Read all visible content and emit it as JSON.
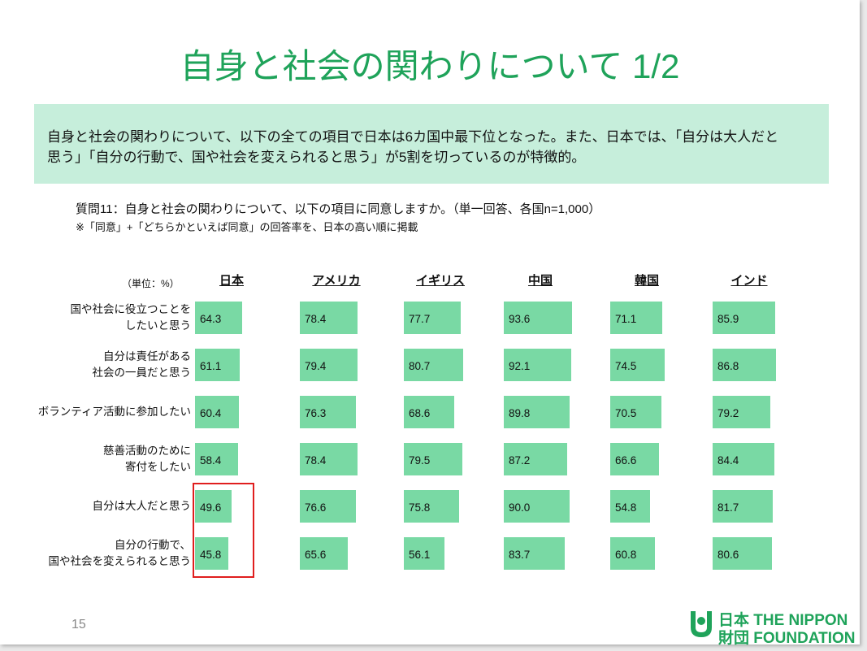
{
  "title": "自身と社会の関わりについて 1/2",
  "summary": [
    "自身と社会の関わりについて、以下の全ての項目で日本は6カ国中最下位となった。また、日本では、「自分は大人だと",
    "思う」「自分の行動で、国や社会を変えられると思う」が5割を切っているのが特徴的。"
  ],
  "question": "質問11：自身と社会の関わりについて、以下の項目に同意しますか。（単一回答、各国n=1,000）",
  "note": "※「同意」+「どちらかといえば同意」の回答率を、日本の高い順に掲載",
  "page_number": "15",
  "logo": [
    "日本 THE NIPPON",
    "財団 FOUNDATION"
  ],
  "chart_data": {
    "type": "bar",
    "unit": "（単位：%）",
    "categories": [
      "国や社会に役立つことを\nしたいと思う",
      "自分は責任がある\n社会の一員だと思う",
      "ボランティア活動に参加したい",
      "慈善活動のために\n寄付をしたい",
      "自分は大人だと思う",
      "自分の行動で、\n国や社会を変えられると思う"
    ],
    "xlim": [
      0,
      100
    ],
    "series": [
      {
        "name": "日本",
        "color": "#79d9a4",
        "values": [
          64.3,
          61.1,
          60.4,
          58.4,
          49.6,
          45.8
        ],
        "value_labels": [
          "64.3",
          "61.1",
          "60.4",
          "58.4",
          "49.6",
          "45.8"
        ]
      },
      {
        "name": "アメリカ",
        "color": "#79d9a4",
        "values": [
          78.4,
          79.4,
          76.3,
          78.4,
          76.6,
          65.6
        ],
        "value_labels": [
          "78.4",
          "79.4",
          "76.3",
          "78.4",
          "76.6",
          "65.6"
        ]
      },
      {
        "name": "イギリス",
        "color": "#79d9a4",
        "values": [
          77.7,
          80.7,
          68.6,
          79.5,
          75.8,
          56.1
        ],
        "value_labels": [
          "77.7",
          "80.7",
          "68.6",
          "79.5",
          "75.8",
          "56.1"
        ]
      },
      {
        "name": "中国",
        "color": "#79d9a4",
        "values": [
          93.6,
          92.1,
          89.8,
          87.2,
          90.0,
          83.7
        ],
        "value_labels": [
          "93.6",
          "92.1",
          "89.8",
          "87.2",
          "90.0",
          "83.7"
        ]
      },
      {
        "name": "韓国",
        "color": "#79d9a4",
        "values": [
          71.1,
          74.5,
          70.5,
          66.6,
          54.8,
          60.8
        ],
        "value_labels": [
          "71.1",
          "74.5",
          "70.5",
          "66.6",
          "54.8",
          "60.8"
        ]
      },
      {
        "name": "インド",
        "color": "#79d9a4",
        "values": [
          85.9,
          86.8,
          79.2,
          84.4,
          81.7,
          80.6
        ],
        "value_labels": [
          "85.9",
          "86.8",
          "79.2",
          "84.4",
          "81.7",
          "80.6"
        ]
      }
    ]
  }
}
